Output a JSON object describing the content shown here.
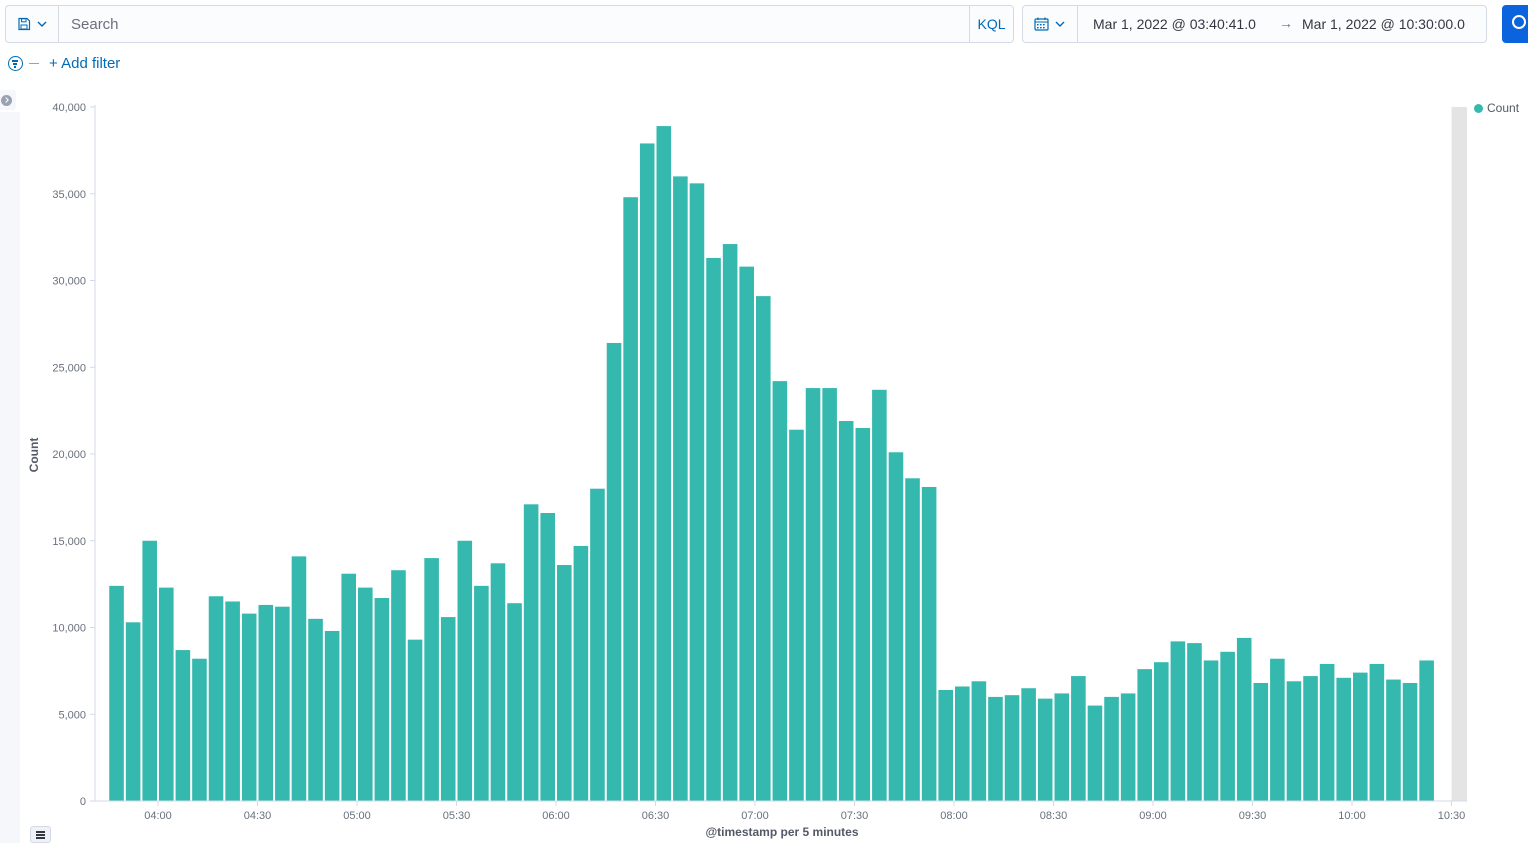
{
  "query_bar": {
    "search_placeholder": "Search",
    "language_label": "KQL",
    "date_start": "Mar 1, 2022 @ 03:40:41.0",
    "date_arrow": "→",
    "date_end": "Mar 1, 2022 @ 10:30:00.0"
  },
  "filters": {
    "add_filter_label": "+ Add filter"
  },
  "colors": {
    "accent": "#006bb8",
    "bar": "#35b8ae",
    "primary_button": "#0b64dd"
  },
  "chart_data": {
    "type": "bar",
    "xlabel": "@timestamp per 5 minutes",
    "ylabel": "Count",
    "ylim": [
      0,
      40000
    ],
    "yticks": [
      0,
      5000,
      10000,
      15000,
      20000,
      25000,
      30000,
      35000,
      40000
    ],
    "ytick_labels": [
      "0",
      "5,000",
      "10,000",
      "15,000",
      "20,000",
      "25,000",
      "30,000",
      "35,000",
      "40,000"
    ],
    "xlim": [
      "03:40:41",
      "10:30:00"
    ],
    "xtick_labels": [
      "04:00",
      "04:30",
      "05:00",
      "05:30",
      "06:00",
      "06:30",
      "07:00",
      "07:30",
      "08:00",
      "08:30",
      "09:00",
      "09:30",
      "10:00",
      "10:30"
    ],
    "interval_minutes": 5,
    "legend": {
      "entries": [
        "Count"
      ],
      "position": "top-right"
    },
    "grid": false,
    "series": [
      {
        "name": "Count",
        "x": [
          "03:50",
          "03:55",
          "04:00",
          "04:05",
          "04:10",
          "04:15",
          "04:20",
          "04:25",
          "04:30",
          "04:35",
          "04:40",
          "04:45",
          "04:50",
          "04:55",
          "05:00",
          "05:05",
          "05:10",
          "05:15",
          "05:20",
          "05:25",
          "05:30",
          "05:35",
          "05:40",
          "05:45",
          "05:50",
          "05:55",
          "06:00",
          "06:05",
          "06:10",
          "06:15",
          "06:20",
          "06:25",
          "06:30",
          "06:35",
          "06:40",
          "06:45",
          "06:50",
          "06:55",
          "07:00",
          "07:05",
          "07:10",
          "07:15",
          "07:20",
          "07:25",
          "07:30",
          "07:35",
          "07:40",
          "07:45",
          "07:50",
          "07:55",
          "08:00",
          "08:05",
          "08:10",
          "08:15",
          "08:20",
          "08:25",
          "08:30",
          "08:35",
          "08:40",
          "08:45",
          "08:50",
          "08:55",
          "09:00",
          "09:05",
          "09:10",
          "09:15",
          "09:20",
          "09:25",
          "09:30",
          "09:35",
          "09:40",
          "09:45",
          "09:50",
          "09:55",
          "10:00",
          "10:05",
          "10:10",
          "10:15",
          "10:20",
          "10:25"
        ],
        "values": [
          12400,
          10300,
          15000,
          12300,
          8700,
          8200,
          11800,
          11500,
          10800,
          11300,
          11200,
          14100,
          10500,
          9800,
          13100,
          12300,
          11700,
          13300,
          9300,
          14000,
          10600,
          15000,
          12400,
          13700,
          11400,
          17100,
          16600,
          13600,
          14700,
          18000,
          26400,
          34800,
          37900,
          38900,
          36000,
          35600,
          31300,
          32100,
          30800,
          29100,
          24200,
          21400,
          23800,
          23800,
          21900,
          21500,
          23700,
          20100,
          18600,
          18100,
          6400,
          6600,
          6900,
          6000,
          6100,
          6500,
          5900,
          6200,
          7200,
          5500,
          6000,
          6200,
          7600,
          8000,
          9200,
          9100,
          8100,
          8600,
          9400,
          6800,
          8200,
          6900,
          7200,
          7900,
          7100,
          7400,
          7900,
          7000,
          6800,
          8100
        ]
      }
    ]
  }
}
